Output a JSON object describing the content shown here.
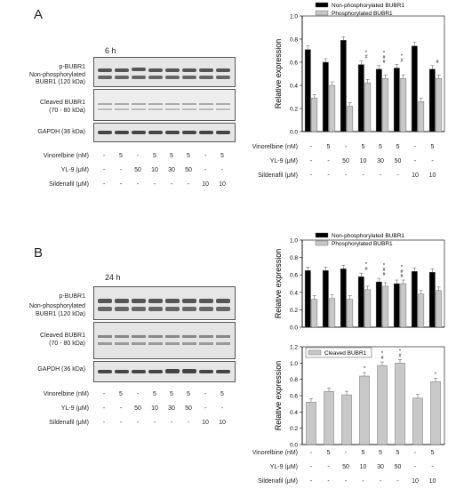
{
  "panelA": {
    "letter": "A",
    "timepoint": "6 h",
    "blot_labels": {
      "pbubr1": "p-BUBR1",
      "nonphos_line1": "Non-phosphorylated",
      "nonphos_line2": "BUBR1 (120 kDa)",
      "cleaved_line1": "Cleaved BUBR1",
      "cleaved_line2": "(70 - 80 kDa)",
      "gapdh": "GAPDH (36 kDa)"
    }
  },
  "panelB": {
    "letter": "B",
    "timepoint": "24 h",
    "blot_labels": {
      "pbubr1": "p-BUBR1",
      "nonphos_line1": "Non-phosphorylated",
      "nonphos_line2": "BUBR1 (120 kDa)",
      "cleaved_line1": "Cleaved BUBR1",
      "cleaved_line2": "(70 - 80 kDa)",
      "gapdh": "GAPDH (36 kDa)"
    }
  },
  "treatments": {
    "rows": [
      {
        "label": "Vinorelbine (nM)",
        "values": [
          "-",
          "5",
          "-",
          "5",
          "5",
          "5",
          "-",
          "5"
        ]
      },
      {
        "label": "YL-9 (μM)",
        "values": [
          "-",
          "-",
          "50",
          "10",
          "30",
          "50",
          "-",
          "-"
        ]
      },
      {
        "label": "Sildenafil (μM)",
        "values": [
          "-",
          "-",
          "-",
          "-",
          "-",
          "-",
          "10",
          "10"
        ]
      }
    ]
  },
  "colors": {
    "black_bar": "#000000",
    "gray_bar": "#c8c8c8"
  },
  "chart_data": [
    {
      "type": "bar",
      "panel": "A",
      "ylabel": "Relative expression",
      "ylim": [
        0,
        1.0
      ],
      "yticks": [
        "0.0",
        "0.2",
        "0.4",
        "0.6",
        "0.8",
        "1.0"
      ],
      "legend_position": "top",
      "series": [
        {
          "name": "Non-phosphorylated BUBR1",
          "values": [
            0.71,
            0.6,
            0.79,
            0.58,
            0.54,
            0.55,
            0.74,
            0.54
          ]
        },
        {
          "name": "Phosphorylated BUBR1",
          "values": [
            0.29,
            0.4,
            0.22,
            0.42,
            0.46,
            0.46,
            0.26,
            0.46
          ]
        }
      ],
      "markers": [
        "",
        "",
        "",
        "*,#",
        "*,#,#",
        "*,#",
        "",
        "#"
      ]
    },
    {
      "type": "bar",
      "panel": "B-top",
      "ylabel": "Relative expression",
      "ylim": [
        0,
        1.0
      ],
      "yticks": [
        "0.0",
        "0.2",
        "0.4",
        "0.6",
        "0.8",
        "1.0"
      ],
      "legend_position": "top",
      "series": [
        {
          "name": "Non-phosphorylated BUBR1",
          "values": [
            0.65,
            0.65,
            0.67,
            0.58,
            0.52,
            0.5,
            0.64,
            0.63
          ]
        },
        {
          "name": "Phosphorylated BUBR1",
          "values": [
            0.32,
            0.33,
            0.32,
            0.43,
            0.47,
            0.5,
            0.38,
            0.42
          ]
        }
      ],
      "markers": [
        "",
        "",
        "",
        "*,#",
        "*,#,#",
        "*,#,#",
        "",
        ""
      ]
    },
    {
      "type": "bar",
      "panel": "B-bottom",
      "ylabel": "Relative expression",
      "ylim": [
        0,
        1.2
      ],
      "yticks": [
        "0.0",
        "0.2",
        "0.4",
        "0.6",
        "0.8",
        "1.0",
        "1.2"
      ],
      "legend_position": "top-left",
      "series": [
        {
          "name": "Cleaved BUBR1",
          "values": [
            0.52,
            0.65,
            0.61,
            0.84,
            0.97,
            1.0,
            0.57,
            0.77
          ]
        }
      ],
      "markers": [
        "",
        "",
        "",
        "*",
        "*,#",
        "*,#",
        "",
        "*"
      ]
    }
  ]
}
